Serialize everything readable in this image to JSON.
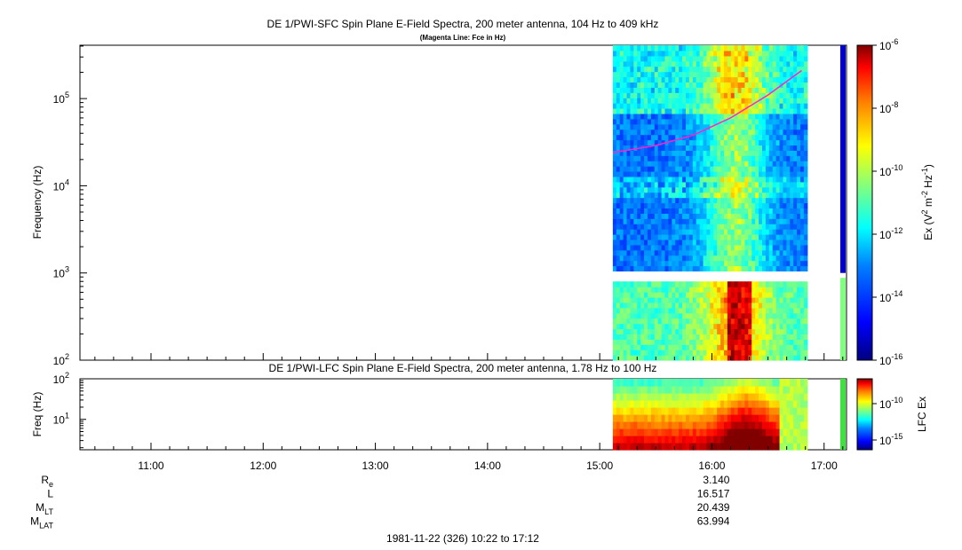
{
  "chart_data": [
    {
      "type": "heatmap",
      "title": "DE 1/PWI-SFC  Spin Plane E-Field Spectra, 200 meter antenna, 104 Hz to 409 kHz",
      "subtitle": "(Magenta Line: Fce in Hz)",
      "ylabel": "Frequency (Hz)",
      "ylim": [
        100,
        409000
      ],
      "yscale": "log",
      "y_ticks": [
        {
          "base": "10",
          "exp": "2"
        },
        {
          "base": "10",
          "exp": "3"
        },
        {
          "base": "10",
          "exp": "4"
        },
        {
          "base": "10",
          "exp": "5"
        }
      ],
      "data_start": "15:07",
      "data_end": "16:51",
      "gap_hz": [
        880,
        1000
      ],
      "fce_line": {
        "name": "Fce in Hz",
        "color": "#ff22cc",
        "points": [
          [
            "15:07",
            24000
          ],
          [
            "15:30",
            29000
          ],
          [
            "15:50",
            38000
          ],
          [
            "16:10",
            60000
          ],
          [
            "16:30",
            110000
          ],
          [
            "16:48",
            210000
          ]
        ]
      },
      "colorbar": {
        "label": "Ex (V² m⁻² Hz⁻¹)",
        "label_parts": {
          "a": "Ex (V",
          "b": "2",
          "c": " m",
          "d": "-2",
          "e": " Hz",
          "f": "-1",
          "g": ")"
        },
        "scale": "log",
        "range": [
          1e-16,
          1e-06
        ],
        "ticks": [
          {
            "base": "10",
            "exp": "-6"
          },
          {
            "base": "10",
            "exp": "-8"
          },
          {
            "base": "10",
            "exp": "-10"
          },
          {
            "base": "10",
            "exp": "-12"
          },
          {
            "base": "10",
            "exp": "-14"
          },
          {
            "base": "10",
            "exp": "-16"
          }
        ]
      }
    },
    {
      "type": "heatmap",
      "title": "DE 1/PWI-LFC  Spin Plane E-Field Spectra, 200 meter antenna, 1.78 Hz to 100 Hz",
      "ylabel": "Freq (Hz)",
      "ylim": [
        1.78,
        100
      ],
      "yscale": "log",
      "y_ticks": [
        {
          "base": "10",
          "exp": "2"
        },
        {
          "base": "10",
          "exp": "1"
        }
      ],
      "data_start": "15:07",
      "data_end": "16:51",
      "colorbar": {
        "label": "LFC Ex",
        "scale": "log",
        "ticks": [
          {
            "base": "10",
            "exp": "-10"
          },
          {
            "base": "10",
            "exp": "-15"
          }
        ]
      }
    }
  ],
  "x_axis": {
    "range": [
      "10:22",
      "17:12"
    ],
    "ticks": [
      "11:00",
      "12:00",
      "13:00",
      "14:00",
      "15:00",
      "16:00",
      "17:00"
    ],
    "caption": "1981-11-22 (326) 10:22 to 17:12"
  },
  "ephemeris": {
    "rows": [
      {
        "label": "R",
        "sub": "e",
        "value": "3.140"
      },
      {
        "label": "L",
        "sub": "",
        "value": "16.517"
      },
      {
        "label": "M",
        "sub": "LT",
        "value": "20.439"
      },
      {
        "label": "M",
        "sub": "LAT",
        "value": "63.994"
      }
    ]
  },
  "colors": {
    "colormap": [
      "#00007f",
      "#0000ff",
      "#0080ff",
      "#00ffff",
      "#80ff80",
      "#ffff00",
      "#ff8000",
      "#ff0000",
      "#7f0000"
    ]
  }
}
